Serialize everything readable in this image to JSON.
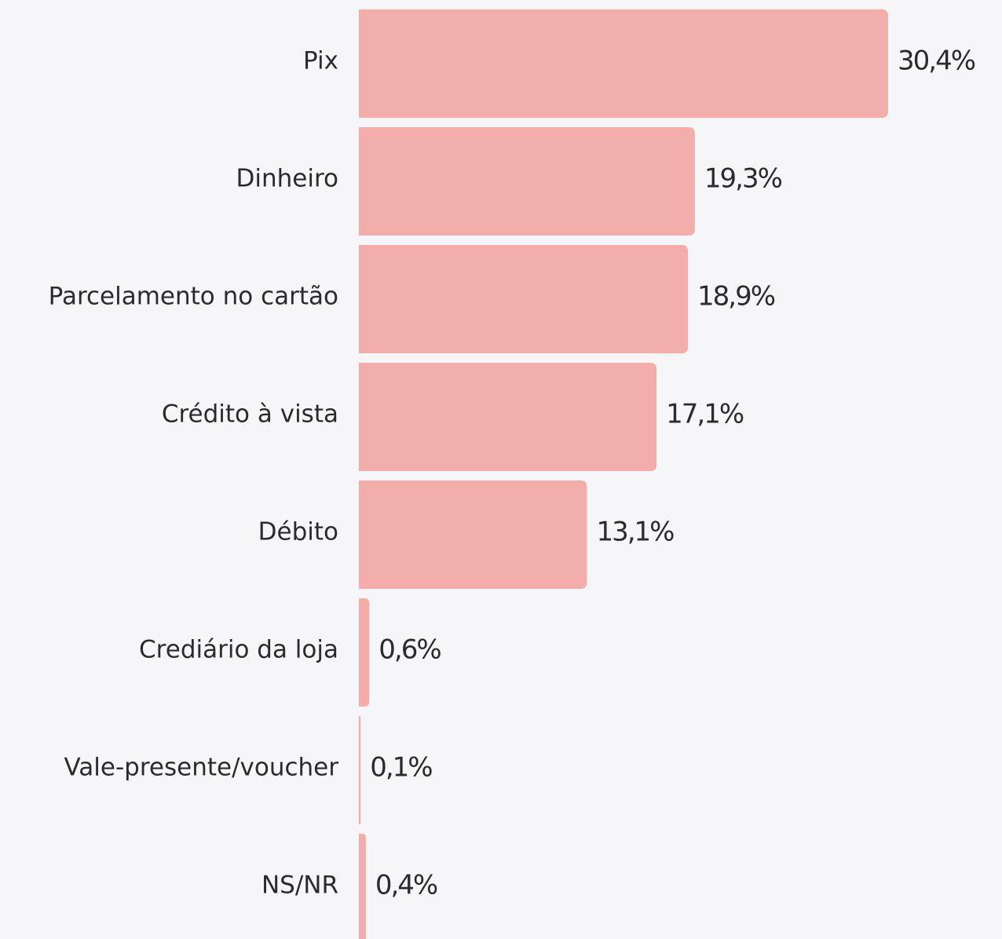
{
  "chart_data": {
    "type": "bar",
    "orientation": "horizontal",
    "categories": [
      "Pix",
      "Dinheiro",
      "Parcelamento no cartão",
      "Crédito à vista",
      "Débito",
      "Crediário da loja",
      "Vale-presente/voucher",
      "NS/NR"
    ],
    "values": [
      30.4,
      19.3,
      18.9,
      17.1,
      13.1,
      0.6,
      0.1,
      0.4
    ],
    "value_labels": [
      "30,4%",
      "19,3%",
      "18,9%",
      "17,1%",
      "13,1%",
      "0,6%",
      "0,1%",
      "0,4%"
    ],
    "color": "#f3aeab"
  }
}
